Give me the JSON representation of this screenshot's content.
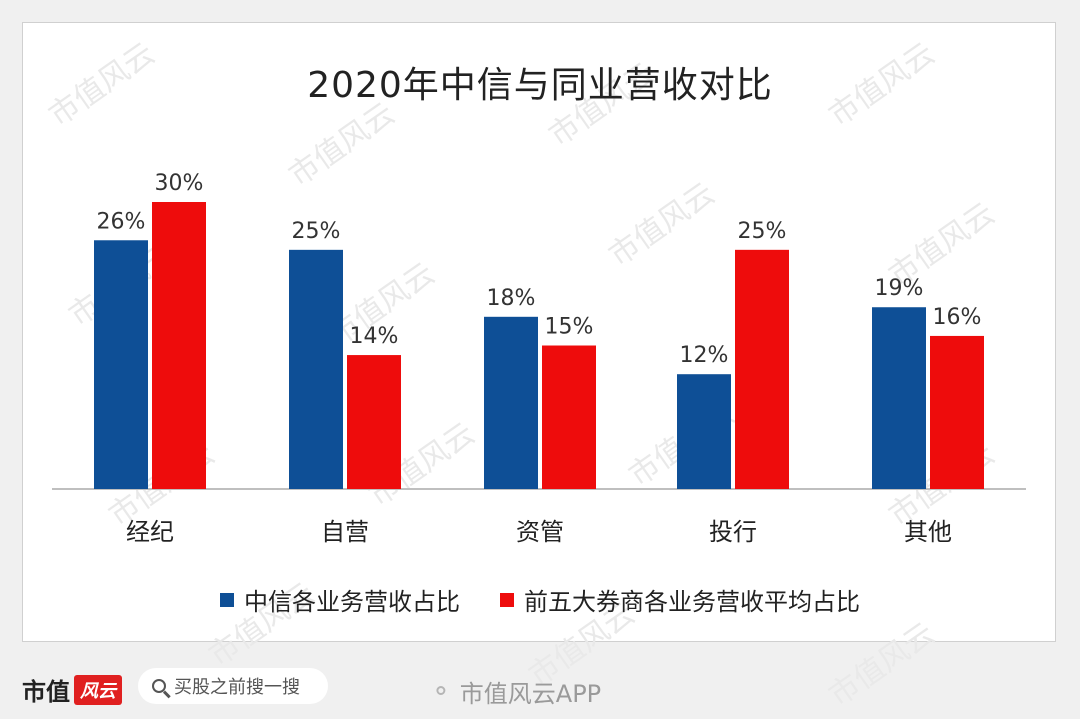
{
  "chart_data": {
    "type": "bar",
    "title": "2020年中信与同业营收对比",
    "categories": [
      "经纪",
      "自营",
      "资管",
      "投行",
      "其他"
    ],
    "series": [
      {
        "name": "中信各业务营收占比",
        "values": [
          26,
          25,
          18,
          12,
          19
        ],
        "labels": [
          "26%",
          "25%",
          "18%",
          "12%",
          "19%"
        ],
        "color": "#0e4f96"
      },
      {
        "name": "前五大券商各业务营收平均占比",
        "values": [
          30,
          14,
          15,
          25,
          16
        ],
        "labels": [
          "30%",
          "14%",
          "15%",
          "25%",
          "16%"
        ],
        "color": "#ee0c0c"
      }
    ],
    "ylim": [
      0,
      30
    ],
    "grid": false,
    "legend_position": "bottom"
  },
  "footer": {
    "brand_text": "市值",
    "brand_logo": "风云",
    "search_placeholder": "买股之前搜一搜",
    "weibo_text": "市值风云APP"
  },
  "watermark_text": "市值风云"
}
